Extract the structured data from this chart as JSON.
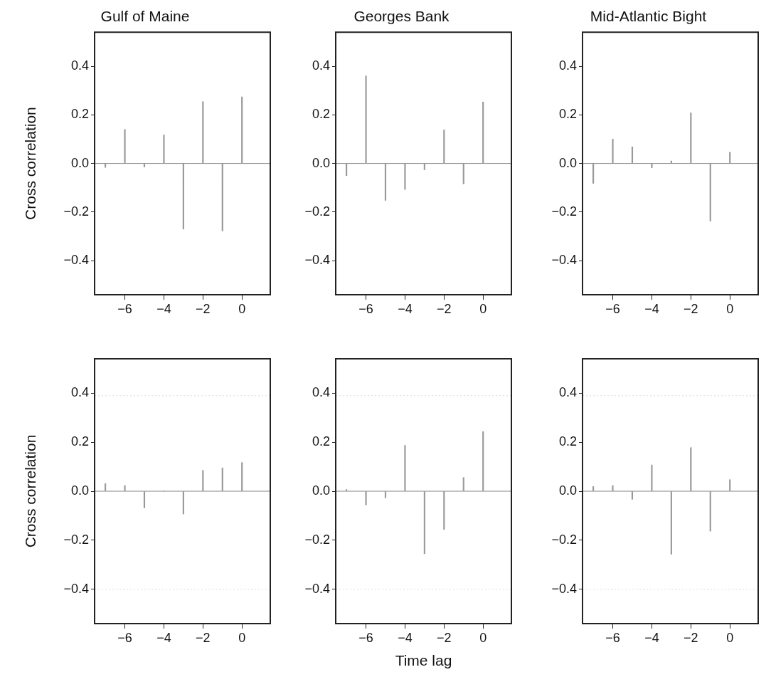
{
  "chart_data": [
    {
      "type": "bar",
      "title": "Gulf of Maine",
      "ylabel": "Cross correlation",
      "x": [
        -7,
        -6,
        -5,
        -4,
        -3,
        -2,
        -1,
        0
      ],
      "values": [
        -0.016,
        0.14,
        -0.015,
        0.117,
        -0.27,
        0.254,
        -0.278,
        0.274
      ],
      "color": "#999999",
      "xlim": [
        -7.55,
        1.45
      ],
      "xticks": [
        {
          "value": -6,
          "label": "−6"
        },
        {
          "value": -4,
          "label": "−4"
        },
        {
          "value": -2,
          "label": "−2"
        },
        {
          "value": 0,
          "label": "0"
        }
      ],
      "ylim": [
        -0.54,
        0.54
      ],
      "yticks": [
        {
          "value": -0.4,
          "label": "−0.4"
        },
        {
          "value": -0.2,
          "label": "−0.2"
        },
        {
          "value": 0,
          "label": "0.0"
        },
        {
          "value": 0.2,
          "label": "0.2"
        },
        {
          "value": 0.4,
          "label": "0.4"
        }
      ],
      "ref_lines": [
        {
          "axis": "y",
          "value": 0,
          "color": "#888888"
        }
      ]
    },
    {
      "type": "bar",
      "title": "Georges Bank",
      "x": [
        -7,
        -6,
        -5,
        -4,
        -3,
        -2,
        -1,
        0
      ],
      "values": [
        -0.05,
        0.36,
        -0.152,
        -0.107,
        -0.026,
        0.138,
        -0.084,
        0.253
      ],
      "color": "#999999",
      "xlim": [
        -7.55,
        1.45
      ],
      "xticks": [
        {
          "value": -6,
          "label": "−6"
        },
        {
          "value": -4,
          "label": "−4"
        },
        {
          "value": -2,
          "label": "−2"
        },
        {
          "value": 0,
          "label": "0"
        }
      ],
      "ylim": [
        -0.54,
        0.54
      ],
      "yticks": [
        {
          "value": -0.4,
          "label": "−0.4"
        },
        {
          "value": -0.2,
          "label": "−0.2"
        },
        {
          "value": 0,
          "label": "0.0"
        },
        {
          "value": 0.2,
          "label": "0.2"
        },
        {
          "value": 0.4,
          "label": "0.4"
        }
      ],
      "ref_lines": [
        {
          "axis": "y",
          "value": 0,
          "color": "#888888"
        }
      ]
    },
    {
      "type": "bar",
      "title": "Mid-Atlantic Bight",
      "x": [
        -7,
        -6,
        -5,
        -4,
        -3,
        -2,
        -1,
        0
      ],
      "values": [
        -0.082,
        0.1,
        0.068,
        -0.018,
        0.01,
        0.208,
        -0.237,
        0.046
      ],
      "color": "#999999",
      "xlim": [
        -7.55,
        1.45
      ],
      "xticks": [
        {
          "value": -6,
          "label": "−6"
        },
        {
          "value": -4,
          "label": "−4"
        },
        {
          "value": -2,
          "label": "−2"
        },
        {
          "value": 0,
          "label": "0"
        }
      ],
      "ylim": [
        -0.54,
        0.54
      ],
      "yticks": [
        {
          "value": -0.4,
          "label": "−0.4"
        },
        {
          "value": -0.2,
          "label": "−0.2"
        },
        {
          "value": 0,
          "label": "0.0"
        },
        {
          "value": 0.2,
          "label": "0.2"
        },
        {
          "value": 0.4,
          "label": "0.4"
        }
      ],
      "ref_lines": [
        {
          "axis": "y",
          "value": 0,
          "color": "#888888"
        }
      ]
    },
    {
      "type": "bar",
      "ylabel": "Cross correlation",
      "x": [
        -7,
        -6,
        -5,
        -4,
        -3,
        -2,
        -1,
        0
      ],
      "values": [
        0.031,
        0.023,
        -0.068,
        0,
        -0.093,
        0.085,
        0.095,
        0.117
      ],
      "color": "#999999",
      "xlim": [
        -7.55,
        1.45
      ],
      "xticks": [
        {
          "value": -6,
          "label": "−6"
        },
        {
          "value": -4,
          "label": "−4"
        },
        {
          "value": -2,
          "label": "−2"
        },
        {
          "value": 0,
          "label": "0"
        }
      ],
      "ylim": [
        -0.54,
        0.54
      ],
      "yticks": [
        {
          "value": -0.4,
          "label": "−0.4"
        },
        {
          "value": -0.2,
          "label": "−0.2"
        },
        {
          "value": 0,
          "label": "0.0"
        },
        {
          "value": 0.2,
          "label": "0.2"
        },
        {
          "value": 0.4,
          "label": "0.4"
        }
      ],
      "ref_lines": [
        {
          "axis": "y",
          "value": 0,
          "color": "#888888"
        },
        {
          "axis": "y",
          "value": 0.39,
          "color": "#dddddd",
          "line_style": "dotted"
        },
        {
          "axis": "y",
          "value": -0.4,
          "color": "#dddddd",
          "line_style": "dotted"
        }
      ]
    },
    {
      "type": "bar",
      "xlabel": "Time lag",
      "x": [
        -7,
        -6,
        -5,
        -4,
        -3,
        -2,
        -1,
        0
      ],
      "values": [
        0.007,
        -0.056,
        -0.027,
        0.187,
        -0.255,
        -0.156,
        0.056,
        0.243
      ],
      "color": "#999999",
      "xlim": [
        -7.55,
        1.45
      ],
      "xticks": [
        {
          "value": -6,
          "label": "−6"
        },
        {
          "value": -4,
          "label": "−4"
        },
        {
          "value": -2,
          "label": "−2"
        },
        {
          "value": 0,
          "label": "0"
        }
      ],
      "ylim": [
        -0.54,
        0.54
      ],
      "yticks": [
        {
          "value": -0.4,
          "label": "−0.4"
        },
        {
          "value": -0.2,
          "label": "−0.2"
        },
        {
          "value": 0,
          "label": "0.0"
        },
        {
          "value": 0.2,
          "label": "0.2"
        },
        {
          "value": 0.4,
          "label": "0.4"
        }
      ],
      "ref_lines": [
        {
          "axis": "y",
          "value": 0,
          "color": "#888888"
        },
        {
          "axis": "y",
          "value": 0.39,
          "color": "#dddddd",
          "line_style": "dotted"
        },
        {
          "axis": "y",
          "value": -0.4,
          "color": "#dddddd",
          "line_style": "dotted"
        }
      ]
    },
    {
      "type": "bar",
      "x": [
        -7,
        -6,
        -5,
        -4,
        -3,
        -2,
        -1,
        0
      ],
      "values": [
        0.019,
        0.023,
        -0.033,
        0.107,
        -0.257,
        0.178,
        -0.163,
        0.047
      ],
      "color": "#999999",
      "xlim": [
        -7.55,
        1.45
      ],
      "xticks": [
        {
          "value": -6,
          "label": "−6"
        },
        {
          "value": -4,
          "label": "−4"
        },
        {
          "value": -2,
          "label": "−2"
        },
        {
          "value": 0,
          "label": "0"
        }
      ],
      "ylim": [
        -0.54,
        0.54
      ],
      "yticks": [
        {
          "value": -0.4,
          "label": "−0.4"
        },
        {
          "value": -0.2,
          "label": "−0.2"
        },
        {
          "value": 0,
          "label": "0.0"
        },
        {
          "value": 0.2,
          "label": "0.2"
        },
        {
          "value": 0.4,
          "label": "0.4"
        }
      ],
      "ref_lines": [
        {
          "axis": "y",
          "value": 0,
          "color": "#888888"
        },
        {
          "axis": "y",
          "value": 0.39,
          "color": "#dddddd",
          "line_style": "dotted"
        },
        {
          "axis": "y",
          "value": -0.4,
          "color": "#dddddd",
          "line_style": "dotted"
        }
      ]
    }
  ]
}
